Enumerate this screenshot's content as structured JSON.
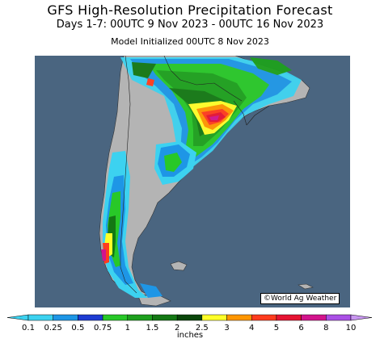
{
  "header": {
    "title": "GFS High-Resolution Precipitation Forecast",
    "subtitle": "Days 1-7: 00UTC 9 Nov 2023 - 00UTC 16 Nov 2023",
    "initialized": "Model Initialized 00UTC 8 Nov 2023"
  },
  "map": {
    "ocean_color": "#4a6580",
    "land_color": "#b4b4b4",
    "credit": "©World Ag Weather"
  },
  "legend": {
    "units": "inches",
    "bins": [
      {
        "label": "0.1",
        "color": "#3cd2f0"
      },
      {
        "label": "0.25",
        "color": "#1e96e6"
      },
      {
        "label": "0.5",
        "color": "#1e3cd2"
      },
      {
        "label": "0.75",
        "color": "#28c828"
      },
      {
        "label": "1",
        "color": "#1ea01e"
      },
      {
        "label": "1.5",
        "color": "#147814"
      },
      {
        "label": "2",
        "color": "#0a460a"
      },
      {
        "label": "2.5",
        "color": "#ffff28"
      },
      {
        "label": "3",
        "color": "#ff9600"
      },
      {
        "label": "4",
        "color": "#ff3c1e"
      },
      {
        "label": "5",
        "color": "#e61432"
      },
      {
        "label": "6",
        "color": "#d2148c"
      },
      {
        "label": "8",
        "color": "#aa50e6"
      },
      {
        "label": "10",
        "color": "#c896f0"
      }
    ]
  }
}
